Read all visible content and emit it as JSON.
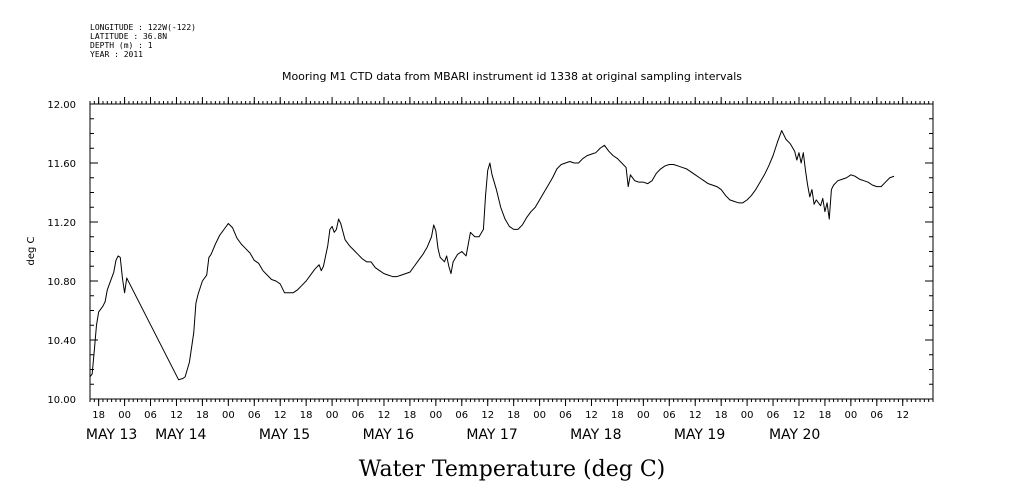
{
  "header": {
    "lines": [
      "LONGITUDE : 122W(-122)",
      "LATITUDE : 36.8N",
      "DEPTH (m) : 1",
      "YEAR : 2011"
    ]
  },
  "chart_data": {
    "type": "line",
    "title": "Mooring M1 CTD data from MBARI instrument id 1338 at original sampling intervals",
    "xlabel": "Water Temperature (deg C)",
    "ylabel": "deg C",
    "ylim": [
      10.0,
      12.0
    ],
    "xlim_hours": [
      -8,
      187
    ],
    "y_ticks": [
      "10.00",
      "10.40",
      "10.80",
      "11.20",
      "11.60",
      "12.00"
    ],
    "x_hour_ticks": [
      {
        "h": -6,
        "label": "18"
      },
      {
        "h": 0,
        "label": "00"
      },
      {
        "h": 6,
        "label": "06"
      },
      {
        "h": 12,
        "label": "12"
      },
      {
        "h": 18,
        "label": "18"
      },
      {
        "h": 24,
        "label": "00"
      },
      {
        "h": 30,
        "label": "06"
      },
      {
        "h": 36,
        "label": "12"
      },
      {
        "h": 42,
        "label": "18"
      },
      {
        "h": 48,
        "label": "00"
      },
      {
        "h": 54,
        "label": "06"
      },
      {
        "h": 60,
        "label": "12"
      },
      {
        "h": 66,
        "label": "18"
      },
      {
        "h": 72,
        "label": "00"
      },
      {
        "h": 78,
        "label": "06"
      },
      {
        "h": 84,
        "label": "12"
      },
      {
        "h": 90,
        "label": "18"
      },
      {
        "h": 96,
        "label": "00"
      },
      {
        "h": 102,
        "label": "06"
      },
      {
        "h": 108,
        "label": "12"
      },
      {
        "h": 114,
        "label": "18"
      },
      {
        "h": 120,
        "label": "00"
      },
      {
        "h": 126,
        "label": "06"
      },
      {
        "h": 132,
        "label": "12"
      },
      {
        "h": 138,
        "label": "18"
      },
      {
        "h": 144,
        "label": "00"
      },
      {
        "h": 150,
        "label": "06"
      },
      {
        "h": 156,
        "label": "12"
      },
      {
        "h": 162,
        "label": "18"
      },
      {
        "h": 168,
        "label": "00"
      },
      {
        "h": 174,
        "label": "06"
      },
      {
        "h": 180,
        "label": "12"
      }
    ],
    "x_day_labels": [
      {
        "h": -3,
        "label": "MAY 13"
      },
      {
        "h": 13,
        "label": "MAY 14"
      },
      {
        "h": 37,
        "label": "MAY 15"
      },
      {
        "h": 61,
        "label": "MAY 16"
      },
      {
        "h": 85,
        "label": "MAY 17"
      },
      {
        "h": 109,
        "label": "MAY 18"
      },
      {
        "h": 133,
        "label": "MAY 19"
      },
      {
        "h": 155,
        "label": "MAY 20"
      }
    ],
    "series": [
      {
        "values_note": "",
        "points": [
          [
            -8.0,
            10.15
          ],
          [
            -7.5,
            10.17
          ],
          [
            -7.0,
            10.33
          ],
          [
            -6.5,
            10.5
          ],
          [
            -6.0,
            10.59
          ],
          [
            -5.5,
            10.61
          ],
          [
            -5.0,
            10.63
          ],
          [
            -4.5,
            10.66
          ],
          [
            -4.0,
            10.74
          ],
          [
            -3.5,
            10.78
          ],
          [
            -3.0,
            10.82
          ],
          [
            -2.5,
            10.86
          ],
          [
            -2.0,
            10.94
          ],
          [
            -1.5,
            10.97
          ],
          [
            -1.0,
            10.96
          ],
          [
            -0.5,
            10.82
          ],
          [
            0.0,
            10.72
          ],
          [
            0.5,
            10.82
          ],
          [
            12.5,
            10.13
          ],
          [
            13.5,
            10.14
          ],
          [
            14.0,
            10.15
          ],
          [
            15.0,
            10.25
          ],
          [
            16.0,
            10.45
          ],
          [
            16.5,
            10.65
          ],
          [
            17.0,
            10.71
          ],
          [
            18.0,
            10.8
          ],
          [
            19.0,
            10.84
          ],
          [
            19.5,
            10.96
          ],
          [
            20.0,
            10.98
          ],
          [
            21.0,
            11.05
          ],
          [
            22.0,
            11.11
          ],
          [
            23.0,
            11.15
          ],
          [
            24.0,
            11.19
          ],
          [
            25.0,
            11.16
          ],
          [
            26.0,
            11.09
          ],
          [
            27.0,
            11.05
          ],
          [
            28.0,
            11.02
          ],
          [
            29.0,
            10.99
          ],
          [
            30.0,
            10.94
          ],
          [
            31.0,
            10.92
          ],
          [
            32.0,
            10.87
          ],
          [
            33.0,
            10.84
          ],
          [
            34.0,
            10.81
          ],
          [
            35.0,
            10.8
          ],
          [
            36.0,
            10.78
          ],
          [
            37.0,
            10.72
          ],
          [
            38.0,
            10.72
          ],
          [
            39.0,
            10.72
          ],
          [
            40.0,
            10.74
          ],
          [
            41.0,
            10.77
          ],
          [
            42.0,
            10.8
          ],
          [
            43.0,
            10.84
          ],
          [
            44.0,
            10.88
          ],
          [
            45.0,
            10.91
          ],
          [
            45.5,
            10.87
          ],
          [
            46.0,
            10.9
          ],
          [
            47.0,
            11.04
          ],
          [
            47.5,
            11.15
          ],
          [
            48.0,
            11.17
          ],
          [
            48.5,
            11.13
          ],
          [
            49.0,
            11.15
          ],
          [
            49.5,
            11.22
          ],
          [
            50.0,
            11.19
          ],
          [
            51.0,
            11.08
          ],
          [
            52.0,
            11.04
          ],
          [
            53.0,
            11.01
          ],
          [
            54.0,
            10.98
          ],
          [
            55.0,
            10.95
          ],
          [
            56.0,
            10.93
          ],
          [
            57.0,
            10.93
          ],
          [
            58.0,
            10.89
          ],
          [
            59.0,
            10.87
          ],
          [
            60.0,
            10.85
          ],
          [
            61.0,
            10.84
          ],
          [
            62.0,
            10.83
          ],
          [
            63.0,
            10.83
          ],
          [
            64.0,
            10.84
          ],
          [
            65.0,
            10.85
          ],
          [
            66.0,
            10.86
          ],
          [
            67.0,
            10.9
          ],
          [
            68.0,
            10.94
          ],
          [
            69.0,
            10.98
          ],
          [
            70.0,
            11.03
          ],
          [
            71.0,
            11.1
          ],
          [
            71.5,
            11.18
          ],
          [
            72.0,
            11.14
          ],
          [
            72.5,
            11.02
          ],
          [
            73.0,
            10.96
          ],
          [
            74.0,
            10.93
          ],
          [
            74.5,
            10.97
          ],
          [
            75.0,
            10.9
          ],
          [
            75.5,
            10.85
          ],
          [
            76.0,
            10.93
          ],
          [
            77.0,
            10.98
          ],
          [
            78.0,
            11.0
          ],
          [
            79.0,
            10.97
          ],
          [
            79.5,
            11.05
          ],
          [
            80.0,
            11.13
          ],
          [
            81.0,
            11.1
          ],
          [
            82.0,
            11.1
          ],
          [
            83.0,
            11.15
          ],
          [
            83.5,
            11.38
          ],
          [
            84.0,
            11.55
          ],
          [
            84.5,
            11.6
          ],
          [
            85.0,
            11.52
          ],
          [
            86.0,
            11.42
          ],
          [
            87.0,
            11.3
          ],
          [
            88.0,
            11.22
          ],
          [
            89.0,
            11.17
          ],
          [
            90.0,
            11.15
          ],
          [
            91.0,
            11.15
          ],
          [
            92.0,
            11.18
          ],
          [
            93.0,
            11.23
          ],
          [
            94.0,
            11.27
          ],
          [
            95.0,
            11.3
          ],
          [
            96.0,
            11.35
          ],
          [
            97.0,
            11.4
          ],
          [
            98.0,
            11.45
          ],
          [
            99.0,
            11.5
          ],
          [
            100.0,
            11.56
          ],
          [
            101.0,
            11.59
          ],
          [
            102.0,
            11.6
          ],
          [
            103.0,
            11.61
          ],
          [
            104.0,
            11.6
          ],
          [
            105.0,
            11.6
          ],
          [
            106.0,
            11.63
          ],
          [
            107.0,
            11.65
          ],
          [
            108.0,
            11.66
          ],
          [
            109.0,
            11.67
          ],
          [
            110.0,
            11.7
          ],
          [
            111.0,
            11.72
          ],
          [
            112.0,
            11.68
          ],
          [
            113.0,
            11.65
          ],
          [
            114.0,
            11.63
          ],
          [
            115.0,
            11.6
          ],
          [
            116.0,
            11.57
          ],
          [
            116.5,
            11.44
          ],
          [
            117.0,
            11.52
          ],
          [
            118.0,
            11.48
          ],
          [
            119.0,
            11.47
          ],
          [
            120.0,
            11.47
          ],
          [
            121.0,
            11.46
          ],
          [
            122.0,
            11.48
          ],
          [
            123.0,
            11.53
          ],
          [
            124.0,
            11.56
          ],
          [
            125.0,
            11.58
          ],
          [
            126.0,
            11.59
          ],
          [
            127.0,
            11.59
          ],
          [
            128.0,
            11.58
          ],
          [
            129.0,
            11.57
          ],
          [
            130.0,
            11.56
          ],
          [
            131.0,
            11.54
          ],
          [
            132.0,
            11.52
          ],
          [
            133.0,
            11.5
          ],
          [
            134.0,
            11.48
          ],
          [
            135.0,
            11.46
          ],
          [
            136.0,
            11.45
          ],
          [
            137.0,
            11.44
          ],
          [
            138.0,
            11.42
          ],
          [
            139.0,
            11.38
          ],
          [
            140.0,
            11.35
          ],
          [
            141.0,
            11.34
          ],
          [
            142.0,
            11.33
          ],
          [
            143.0,
            11.33
          ],
          [
            144.0,
            11.35
          ],
          [
            145.0,
            11.38
          ],
          [
            146.0,
            11.42
          ],
          [
            147.0,
            11.47
          ],
          [
            148.0,
            11.52
          ],
          [
            149.0,
            11.58
          ],
          [
            150.0,
            11.65
          ],
          [
            151.0,
            11.74
          ],
          [
            152.0,
            11.82
          ],
          [
            153.0,
            11.76
          ],
          [
            154.0,
            11.73
          ],
          [
            155.0,
            11.68
          ],
          [
            155.5,
            11.62
          ],
          [
            156.0,
            11.67
          ],
          [
            156.5,
            11.6
          ],
          [
            157.0,
            11.67
          ],
          [
            157.5,
            11.55
          ],
          [
            158.0,
            11.45
          ],
          [
            158.5,
            11.37
          ],
          [
            159.0,
            11.42
          ],
          [
            159.5,
            11.32
          ],
          [
            160.0,
            11.35
          ],
          [
            161.0,
            11.31
          ],
          [
            161.5,
            11.36
          ],
          [
            162.0,
            11.27
          ],
          [
            162.5,
            11.33
          ],
          [
            163.0,
            11.22
          ],
          [
            163.5,
            11.42
          ],
          [
            164.0,
            11.45
          ],
          [
            165.0,
            11.48
          ],
          [
            166.0,
            11.49
          ],
          [
            167.0,
            11.5
          ],
          [
            168.0,
            11.52
          ],
          [
            169.0,
            11.51
          ],
          [
            170.0,
            11.49
          ],
          [
            171.0,
            11.48
          ],
          [
            172.0,
            11.47
          ],
          [
            173.0,
            11.45
          ],
          [
            174.0,
            11.44
          ],
          [
            175.0,
            11.44
          ],
          [
            176.0,
            11.47
          ],
          [
            177.0,
            11.5
          ],
          [
            178.0,
            11.51
          ]
        ]
      }
    ]
  }
}
